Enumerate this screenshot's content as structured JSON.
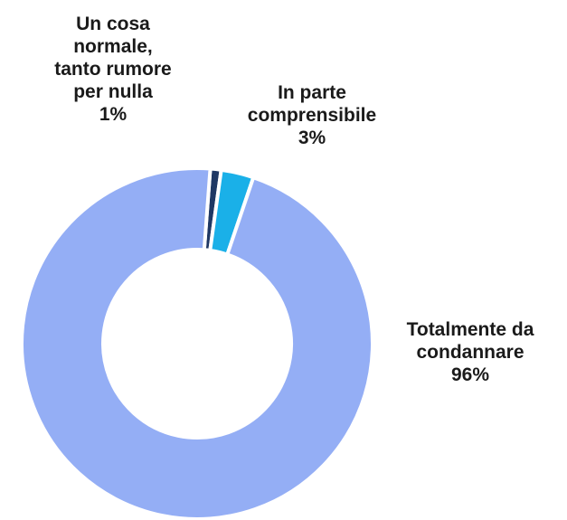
{
  "chart_data": {
    "type": "pie",
    "subtype": "donut",
    "title": "",
    "slices": [
      {
        "label_lines": [
          "Un cosa",
          "normale,",
          "tanto rumore",
          "per nulla"
        ],
        "value": 1,
        "display": "1%",
        "color": "#1f3864"
      },
      {
        "label_lines": [
          "In parte",
          "comprensibile"
        ],
        "value": 3,
        "display": "3%",
        "color": "#1ab0e8"
      },
      {
        "label_lines": [
          "Totalmente da",
          "condannare"
        ],
        "value": 96,
        "display": "96%",
        "color": "#94aef5"
      }
    ],
    "legend": "none",
    "labels_placement": "outside"
  }
}
